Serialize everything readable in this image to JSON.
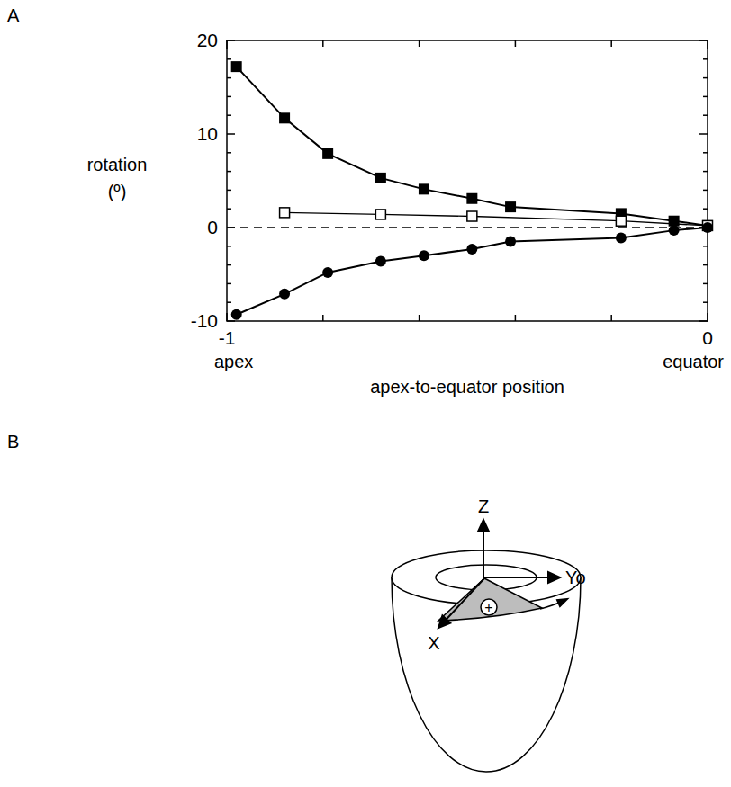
{
  "panels": [
    "A",
    "B"
  ],
  "chart_data": {
    "type": "line",
    "ylabel": [
      "rotation",
      "(º)"
    ],
    "xlabel": "apex-to-equator position",
    "annotations": [
      {
        "text": "apex",
        "x": -1
      },
      {
        "text": "equator",
        "x": 0
      }
    ],
    "xlim": [
      -1,
      0
    ],
    "xticks": [
      -1,
      0
    ],
    "x_minor_ticks": [
      -0.8,
      -0.6,
      -0.4,
      -0.2
    ],
    "ylim": [
      -10,
      20
    ],
    "yticks": [
      -10,
      0,
      10,
      20
    ],
    "y_minor_ticks": [
      -8,
      -6,
      -4,
      -2,
      2,
      4,
      6,
      8,
      12,
      14,
      16,
      18
    ],
    "hlines": [
      {
        "y": 0,
        "line_style": "dashed"
      }
    ],
    "series": [
      {
        "color": "#000000",
        "marker": "square",
        "line_style": "solid",
        "x": [
          -0.98,
          -0.88,
          -0.79,
          -0.68,
          -0.59,
          -0.49,
          -0.41,
          -0.18,
          -0.07,
          0
        ],
        "values": [
          17.2,
          11.7,
          7.9,
          5.3,
          4.1,
          3.1,
          2.2,
          1.5,
          0.7,
          0.2
        ]
      },
      {
        "color": "#000000",
        "marker": "open-square",
        "line_style": "solid",
        "x": [
          -0.88,
          -0.68,
          -0.49,
          -0.18,
          0
        ],
        "values": [
          1.6,
          1.4,
          1.2,
          0.7,
          0.2
        ]
      },
      {
        "color": "#000000",
        "marker": "circle",
        "line_style": "solid",
        "x": [
          -0.98,
          -0.88,
          -0.79,
          -0.68,
          -0.59,
          -0.49,
          -0.41,
          -0.18,
          -0.07,
          0
        ],
        "values": [
          -9.3,
          -7.1,
          -4.8,
          -3.6,
          -3.0,
          -2.3,
          -1.5,
          -1.1,
          -0.3,
          0.0
        ]
      }
    ]
  },
  "diagram": {
    "axis_labels": {
      "z": "Z",
      "y": "Yo",
      "x": "X"
    },
    "sector_sign": "+"
  }
}
